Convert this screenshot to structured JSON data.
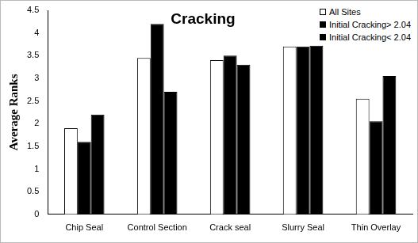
{
  "chart_data": {
    "type": "bar",
    "title": "Cracking",
    "y_label": "Average Ranks",
    "categories": [
      "Chip Seal",
      "Control Section",
      "Crack seal",
      "Slurry Seal",
      "Thin Overlay"
    ],
    "series": [
      {
        "name": "All Sites",
        "color": "#ffffff",
        "values": [
          1.9,
          3.45,
          3.4,
          3.7,
          2.55
        ]
      },
      {
        "name": "Initial Cracking> 2.04",
        "color": "#000000",
        "values": [
          1.6,
          4.2,
          3.5,
          3.7,
          2.05
        ]
      },
      {
        "name": "Initial Cracking< 2.04",
        "color": "#000000",
        "values": [
          2.2,
          2.7,
          3.3,
          3.72,
          3.05
        ]
      }
    ],
    "ylim": [
      0,
      4.5
    ],
    "yticks": [
      0,
      0.5,
      1,
      1.5,
      2,
      2.5,
      3,
      3.5,
      4,
      4.5
    ],
    "grid": false,
    "legend": "upper right"
  }
}
